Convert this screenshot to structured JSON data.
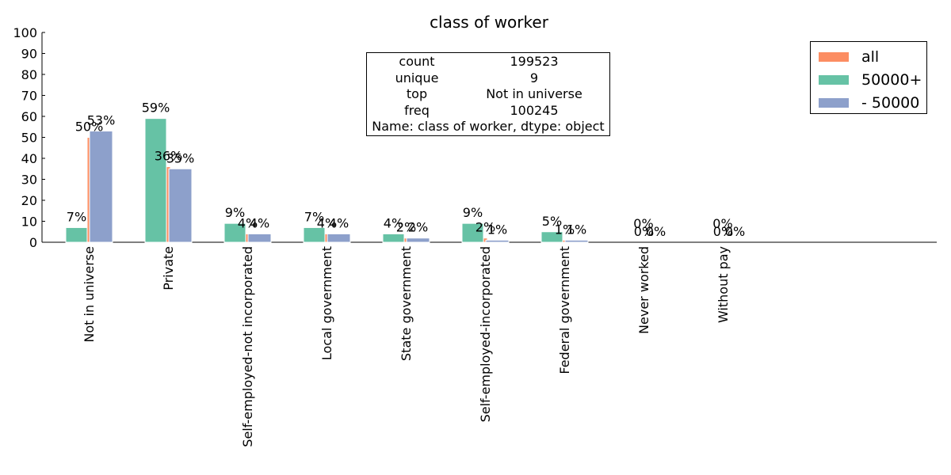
{
  "chart_data": {
    "type": "bar",
    "title": "class of worker",
    "xlabel": "",
    "ylabel": "",
    "ylim": [
      0,
      100
    ],
    "yticks": [
      0,
      10,
      20,
      30,
      40,
      50,
      60,
      70,
      80,
      90,
      100
    ],
    "categories": [
      "Not in universe",
      "Private",
      "Self-employed-not incorporated",
      "Local government",
      "State government",
      "Self-employed-incorporated",
      "Federal government",
      "Never worked",
      "Without pay"
    ],
    "series": [
      {
        "name": "50000+",
        "color": "#66c2a5",
        "values": [
          7,
          59,
          9,
          7,
          4,
          9,
          5,
          0,
          0
        ],
        "labels": [
          "7%",
          "59%",
          "9%",
          "7%",
          "4%",
          "9%",
          "5%",
          "",
          ""
        ]
      },
      {
        "name": "all",
        "color": "#fc8d62",
        "values": [
          50,
          36,
          4,
          4,
          2,
          2,
          1,
          0,
          0
        ],
        "labels": [
          "50%",
          "36%",
          "4%",
          "4%",
          "2%",
          "2%",
          "1%",
          "0%",
          "0%"
        ]
      },
      {
        "name": "- 50000",
        "color": "#8da0cb",
        "values": [
          53,
          35,
          4,
          4,
          2,
          1,
          1,
          0,
          0
        ],
        "labels": [
          "53%",
          "35%",
          "4%",
          "4%",
          "2%",
          "1%",
          "1%",
          "0%",
          "0%"
        ]
      }
    ],
    "extra_labels": [
      "0%",
      "0%"
    ],
    "grid": false,
    "legend": {
      "position": "top-right",
      "items": [
        {
          "label": "all",
          "color": "#fc8d62"
        },
        {
          "label": "50000+",
          "color": "#66c2a5"
        },
        {
          "label": "- 50000",
          "color": "#8da0cb"
        }
      ]
    },
    "annotation": {
      "rows": [
        {
          "key": "count",
          "value": "199523"
        },
        {
          "key": "unique",
          "value": "9"
        },
        {
          "key": "top",
          "value": "Not in universe"
        },
        {
          "key": "freq",
          "value": "100245"
        }
      ],
      "footer": "Name: class of worker, dtype: object"
    }
  }
}
